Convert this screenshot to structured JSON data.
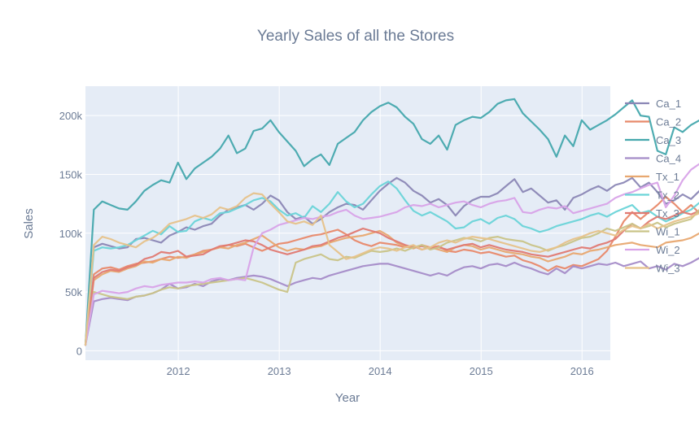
{
  "chart_data": {
    "type": "line",
    "title": "Yearly Sales of all the Stores",
    "xlabel": "Year",
    "ylabel": "Sales",
    "xlim": [
      2011.08,
      2016.28
    ],
    "ylim": [
      -8000,
      225000
    ],
    "x_ticks": [
      {
        "value": 2012,
        "label": "2012"
      },
      {
        "value": 2013,
        "label": "2013"
      },
      {
        "value": 2014,
        "label": "2014"
      },
      {
        "value": 2015,
        "label": "2015"
      },
      {
        "value": 2016,
        "label": "2016"
      }
    ],
    "y_ticks": [
      {
        "value": 0,
        "label": "0"
      },
      {
        "value": 50000,
        "label": "50k"
      },
      {
        "value": 100000,
        "label": "100k"
      },
      {
        "value": 150000,
        "label": "150k"
      },
      {
        "value": 200000,
        "label": "200k"
      }
    ],
    "grid": true,
    "legend_position": "right",
    "x_start": 2011.08,
    "x_step": 0.0833333,
    "series": [
      {
        "name": "Ca_1",
        "color": "#8b87b5",
        "values": [
          5000,
          88000,
          91000,
          89000,
          87000,
          88000,
          95000,
          96000,
          94000,
          92000,
          98000,
          101000,
          105000,
          103000,
          106000,
          108000,
          115000,
          120000,
          122000,
          124000,
          120000,
          125000,
          132000,
          128000,
          118000,
          112000,
          114000,
          108000,
          112000,
          118000,
          122000,
          125000,
          124000,
          120000,
          128000,
          136000,
          142000,
          147000,
          143000,
          136000,
          132000,
          126000,
          129000,
          124000,
          115000,
          123000,
          128000,
          131000,
          131000,
          134000,
          140000,
          146000,
          135000,
          138000,
          132000,
          126000,
          128000,
          120000,
          130000,
          133000,
          137000,
          140000,
          136000,
          141000,
          143000,
          147000,
          139000,
          143000,
          135000,
          125000,
          128000,
          133000,
          129000,
          136000
        ]
      },
      {
        "name": "Ca_2",
        "color": "#e8896a",
        "values": [
          5000,
          65000,
          70000,
          71000,
          69000,
          72000,
          74000,
          75000,
          76000,
          78000,
          80000,
          79000,
          80000,
          82000,
          85000,
          86000,
          88000,
          90000,
          89000,
          91000,
          88000,
          85000,
          88000,
          91000,
          92000,
          94000,
          96000,
          98000,
          99000,
          101000,
          103000,
          99000,
          94000,
          91000,
          89000,
          92000,
          91000,
          90000,
          88000,
          89000,
          86000,
          88000,
          89000,
          85000,
          84000,
          86000,
          85000,
          83000,
          84000,
          82000,
          80000,
          81000,
          77000,
          75000,
          72000,
          68000,
          72000,
          70000,
          73000,
          72000,
          75000,
          78000,
          85000,
          97000,
          110000,
          118000,
          112000,
          118000,
          124000,
          131000,
          125000,
          118000,
          124000,
          117000
        ]
      },
      {
        "name": "Ca_3",
        "color": "#45a8ad",
        "values": [
          5000,
          120000,
          127000,
          124000,
          121000,
          120000,
          127000,
          136000,
          141000,
          145000,
          143000,
          160000,
          146000,
          155000,
          160000,
          165000,
          172000,
          183000,
          168000,
          172000,
          187000,
          189000,
          196000,
          186000,
          178000,
          170000,
          157000,
          163000,
          167000,
          158000,
          176000,
          181000,
          186000,
          196000,
          203000,
          208000,
          211000,
          207000,
          199000,
          193000,
          180000,
          176000,
          183000,
          171000,
          192000,
          196000,
          199000,
          198000,
          203000,
          210000,
          213000,
          214000,
          202000,
          195000,
          188000,
          180000,
          165000,
          183000,
          174000,
          196000,
          188000,
          192000,
          196000,
          201000,
          207000,
          213000,
          200000,
          199000,
          170000,
          167000,
          190000,
          186000,
          192000,
          196000
        ]
      },
      {
        "name": "Ca_4",
        "color": "#a58cc8",
        "values": [
          5000,
          42000,
          44000,
          45000,
          44000,
          43000,
          46000,
          47000,
          49000,
          52000,
          57000,
          53000,
          54000,
          57000,
          55000,
          59000,
          61000,
          60000,
          62000,
          63000,
          64000,
          63000,
          61000,
          58000,
          55000,
          58000,
          60000,
          62000,
          61000,
          64000,
          66000,
          68000,
          70000,
          72000,
          73000,
          74000,
          74000,
          72000,
          70000,
          68000,
          66000,
          64000,
          66000,
          64000,
          68000,
          71000,
          72000,
          70000,
          73000,
          74000,
          72000,
          75000,
          72000,
          70000,
          67000,
          65000,
          70000,
          66000,
          72000,
          70000,
          72000,
          74000,
          73000,
          75000,
          72000,
          74000,
          76000,
          70000,
          72000,
          69000,
          74000,
          72000,
          75000,
          79000
        ]
      },
      {
        "name": "Tx_1",
        "color": "#e8a870",
        "values": [
          5000,
          60000,
          65000,
          68000,
          67000,
          70000,
          72000,
          76000,
          75000,
          78000,
          77000,
          80000,
          79000,
          82000,
          84000,
          86000,
          88000,
          87000,
          90000,
          92000,
          95000,
          98000,
          93000,
          88000,
          85000,
          87000,
          86000,
          88000,
          89000,
          92000,
          94000,
          96000,
          97000,
          98000,
          100000,
          102000,
          98000,
          92000,
          89000,
          87000,
          90000,
          88000,
          86000,
          84000,
          88000,
          90000,
          89000,
          86000,
          88000,
          86000,
          84000,
          83000,
          82000,
          80000,
          79000,
          76000,
          78000,
          80000,
          83000,
          82000,
          85000,
          86000,
          88000,
          90000,
          91000,
          92000,
          90000,
          89000,
          88000,
          92000,
          93000,
          94000,
          96000,
          100000
        ]
      },
      {
        "name": "Tx_2",
        "color": "#6ad4d8",
        "values": [
          5000,
          85000,
          88000,
          87000,
          88000,
          90000,
          94000,
          98000,
          102000,
          99000,
          106000,
          101000,
          102000,
          110000,
          113000,
          111000,
          117000,
          118000,
          121000,
          124000,
          128000,
          130000,
          127000,
          120000,
          115000,
          117000,
          113000,
          123000,
          118000,
          125000,
          135000,
          127000,
          122000,
          125000,
          133000,
          140000,
          144000,
          138000,
          128000,
          119000,
          115000,
          118000,
          114000,
          110000,
          104000,
          105000,
          110000,
          112000,
          108000,
          113000,
          115000,
          112000,
          106000,
          104000,
          101000,
          103000,
          106000,
          108000,
          110000,
          112000,
          115000,
          117000,
          114000,
          118000,
          121000,
          124000,
          117000,
          119000,
          114000,
          110000,
          113000,
          117000,
          120000,
          126000
        ]
      },
      {
        "name": "Tx_3",
        "color": "#e07a72",
        "values": [
          5000,
          62000,
          67000,
          69000,
          68000,
          71000,
          73000,
          78000,
          80000,
          84000,
          83000,
          85000,
          80000,
          81000,
          82000,
          86000,
          89000,
          90000,
          92000,
          94000,
          93000,
          90000,
          86000,
          84000,
          82000,
          84000,
          86000,
          89000,
          90000,
          93000,
          96000,
          98000,
          101000,
          104000,
          102000,
          100000,
          96000,
          93000,
          90000,
          88000,
          89000,
          87000,
          88000,
          86000,
          88000,
          90000,
          91000,
          88000,
          90000,
          88000,
          86000,
          85000,
          84000,
          82000,
          81000,
          80000,
          82000,
          84000,
          86000,
          88000,
          87000,
          90000,
          92000,
          95000,
          102000,
          108000,
          104000,
          110000,
          114000,
          112000,
          115000,
          118000,
          116000,
          119000
        ]
      },
      {
        "name": "Wi_1",
        "color": "#c9c488",
        "values": [
          5000,
          50000,
          48000,
          46000,
          45000,
          44000,
          46000,
          47000,
          49000,
          52000,
          54000,
          53000,
          55000,
          56000,
          57000,
          58000,
          59000,
          60000,
          61000,
          62000,
          60000,
          58000,
          55000,
          52000,
          50000,
          75000,
          78000,
          80000,
          82000,
          78000,
          77000,
          80000,
          79000,
          82000,
          85000,
          84000,
          85000,
          87000,
          85000,
          88000,
          90000,
          86000,
          88000,
          92000,
          94000,
          96000,
          95000,
          93000,
          96000,
          97000,
          95000,
          94000,
          93000,
          90000,
          88000,
          85000,
          88000,
          90000,
          93000,
          96000,
          97000,
          100000,
          104000,
          102000,
          105000,
          108000,
          104000,
          106000,
          109000,
          105000,
          108000,
          110000,
          112000,
          120000
        ]
      },
      {
        "name": "Wi_2",
        "color": "#d8a3e8",
        "values": [
          5000,
          48000,
          51000,
          50000,
          49000,
          50000,
          53000,
          55000,
          54000,
          56000,
          57000,
          58000,
          58000,
          59000,
          58000,
          61000,
          62000,
          60000,
          61000,
          60000,
          88000,
          100000,
          103000,
          107000,
          109000,
          111000,
          113000,
          112000,
          114000,
          115000,
          118000,
          120000,
          115000,
          112000,
          113000,
          114000,
          116000,
          118000,
          122000,
          124000,
          123000,
          125000,
          122000,
          124000,
          126000,
          127000,
          124000,
          122000,
          125000,
          127000,
          128000,
          130000,
          118000,
          117000,
          120000,
          122000,
          121000,
          123000,
          117000,
          119000,
          121000,
          123000,
          125000,
          130000,
          133000,
          135000,
          138000,
          141000,
          143000,
          122000,
          132000,
          145000,
          154000,
          159000
        ]
      },
      {
        "name": "Wi_3",
        "color": "#e6c28a",
        "values": [
          5000,
          90000,
          97000,
          95000,
          92000,
          90000,
          88000,
          93000,
          96000,
          101000,
          108000,
          110000,
          112000,
          115000,
          113000,
          116000,
          122000,
          120000,
          123000,
          130000,
          134000,
          133000,
          125000,
          118000,
          110000,
          108000,
          110000,
          107000,
          115000,
          90000,
          84000,
          78000,
          80000,
          83000,
          86000,
          88000,
          87000,
          85000,
          88000,
          90000,
          86000,
          88000,
          92000,
          94000,
          92000,
          95000,
          97000,
          96000,
          95000,
          93000,
          91000,
          89000,
          87000,
          85000,
          84000,
          86000,
          88000,
          92000,
          95000,
          97000,
          100000,
          102000,
          100000,
          98000,
          103000,
          106000,
          104000,
          108000,
          104000,
          107000,
          110000,
          112000,
          114000,
          117000
        ]
      }
    ]
  }
}
